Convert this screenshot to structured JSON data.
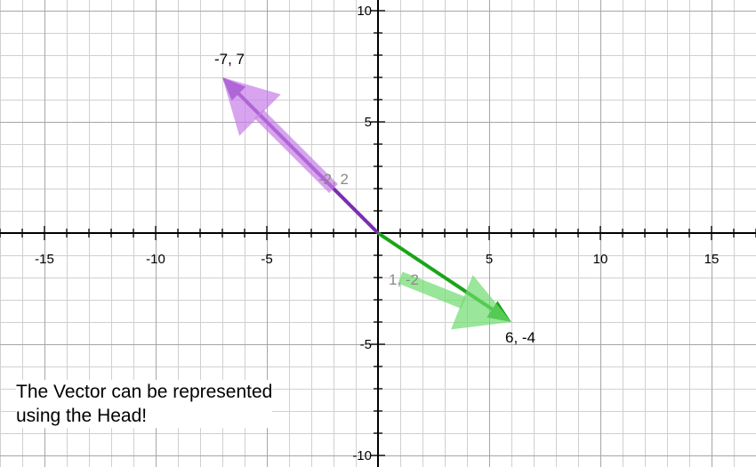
{
  "caption": "The Vector can be represented\nusing the Head!",
  "colors": {
    "purple": "#7a2fb0",
    "purple_light": "#c77ee8",
    "green": "#19a519",
    "green_light": "#6fdc6f",
    "grid_minor": "#d0d0d0",
    "grid_major": "#a6a6a6",
    "axis": "#000000",
    "faded_label": "#8a8a8a"
  },
  "chart_data": {
    "type": "vector-plot",
    "xlim": [
      -17,
      17
    ],
    "ylim": [
      -10.5,
      10.5
    ],
    "grid": true,
    "x_ticks": [
      {
        "value": -15,
        "label": "-15"
      },
      {
        "value": -10,
        "label": "-10"
      },
      {
        "value": -5,
        "label": "-5"
      },
      {
        "value": 5,
        "label": "5"
      },
      {
        "value": 10,
        "label": "10"
      },
      {
        "value": 15,
        "label": "15"
      }
    ],
    "y_ticks": [
      {
        "value": 10,
        "label": "10"
      },
      {
        "value": 5,
        "label": "5"
      },
      {
        "value": -5,
        "label": "-5"
      },
      {
        "value": -10,
        "label": "-10"
      }
    ],
    "vectors": [
      {
        "from": [
          0,
          0
        ],
        "to": [
          -7,
          7
        ],
        "label": "-7, 7",
        "color": "purple",
        "style": "solid"
      },
      {
        "from": [
          -2,
          2
        ],
        "to": [
          -7,
          7
        ],
        "label": "-2, 2",
        "color": "purple_light",
        "style": "faded"
      },
      {
        "from": [
          0,
          0
        ],
        "to": [
          6,
          -4
        ],
        "label": "6, -4",
        "color": "green",
        "style": "solid"
      },
      {
        "from": [
          1,
          -2
        ],
        "to": [
          6,
          -4
        ],
        "label": "1, -2",
        "color": "green_light",
        "style": "faded"
      }
    ]
  }
}
